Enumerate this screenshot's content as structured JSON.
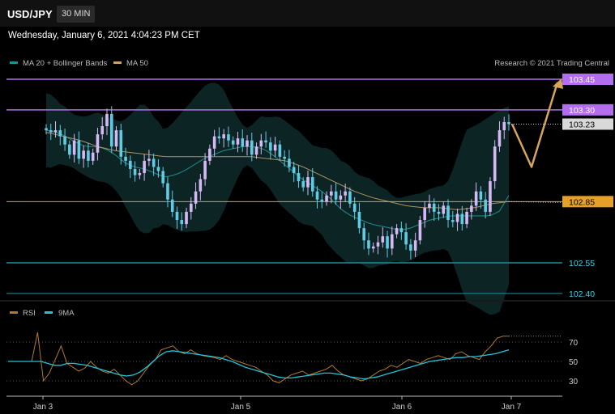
{
  "header": {
    "symbol": "USD/JPY",
    "interval": "30 MIN",
    "datetime": "Wednesday, January 6, 2021 4:04:23 PM CET"
  },
  "legend": [
    {
      "label": "MA 20 + Bollinger Bands",
      "color": "#1f8f8f"
    },
    {
      "label": "MA 50",
      "color": "#c9a46a"
    }
  ],
  "credit": "Research © 2021 Trading Central",
  "colors": {
    "candle_up": "#d6b8f5",
    "candle_down": "#5fcce4",
    "resistance": "#b36ef0",
    "pivot": "#e6a028",
    "support": "#1f8f9e",
    "arrow": "#d6a55a",
    "current_price_bg": "#d9d9d9"
  },
  "chart_data": [
    {
      "type": "candlestick",
      "title": "USD/JPY 30 MIN",
      "x_tick_labels": [
        "Jan 3",
        "Jan 5",
        "Jan 6",
        "Jan 7"
      ],
      "y_price_labels": [
        "103.45",
        "103.30",
        "103.23",
        "102.85",
        "102.55",
        "102.40"
      ],
      "levels": [
        {
          "price": 103.45,
          "label": "103.45",
          "kind": "resistance"
        },
        {
          "price": 103.3,
          "label": "103.30",
          "kind": "resistance"
        },
        {
          "price": 102.85,
          "label": "102.85",
          "kind": "pivot"
        },
        {
          "price": 102.55,
          "label": "102.55",
          "kind": "support"
        },
        {
          "price": 102.4,
          "label": "102.40",
          "kind": "support"
        }
      ],
      "current_price": 103.23,
      "close_series": [
        103.2,
        103.19,
        103.2,
        103.17,
        103.13,
        103.08,
        103.15,
        103.06,
        103.1,
        103.05,
        103.09,
        103.18,
        103.22,
        103.28,
        103.12,
        103.2,
        103.07,
        103.05,
        103.01,
        102.98,
        102.99,
        103.05,
        103.06,
        103.02,
        103.0,
        102.94,
        102.86,
        102.8,
        102.76,
        102.74,
        102.8,
        102.84,
        102.9,
        102.96,
        103.05,
        103.11,
        103.17,
        103.16,
        103.18,
        103.15,
        103.13,
        103.16,
        103.12,
        103.15,
        103.08,
        103.12,
        103.15,
        103.14,
        103.1,
        103.13,
        103.07,
        103.06,
        103.02,
        102.99,
        102.95,
        102.92,
        102.97,
        102.9,
        102.86,
        102.85,
        102.88,
        102.9,
        102.86,
        102.88,
        102.9,
        102.84,
        102.8,
        102.72,
        102.66,
        102.62,
        102.63,
        102.65,
        102.68,
        102.62,
        102.69,
        102.72,
        102.7,
        102.64,
        102.61,
        102.66,
        102.76,
        102.82,
        102.84,
        102.8,
        102.79,
        102.83,
        102.76,
        102.75,
        102.79,
        102.74,
        102.8,
        102.83,
        102.9,
        102.86,
        102.8,
        102.95,
        103.12,
        103.2,
        103.24,
        103.23
      ],
      "ma20_series": [
        103.2,
        103.19,
        103.17,
        103.14,
        103.12,
        103.12,
        103.11,
        103.08,
        103.04,
        103.02,
        103.01,
        102.99,
        102.97,
        102.98,
        103.0,
        103.03,
        103.06,
        103.08,
        103.1,
        103.11,
        103.12,
        103.12,
        103.11,
        103.08,
        103.04,
        103.0,
        102.96,
        102.93,
        102.9,
        102.86,
        102.81,
        102.78,
        102.76,
        102.74,
        102.73,
        102.72,
        102.71,
        102.72,
        102.74,
        102.76,
        102.77,
        102.78,
        102.78,
        102.78,
        102.78,
        102.78,
        102.8,
        102.88
      ],
      "ma50_series": [
        103.19,
        103.17,
        103.15,
        103.12,
        103.1,
        103.09,
        103.08,
        103.07,
        103.07,
        103.07,
        103.07,
        103.07,
        103.07,
        103.06,
        103.05,
        103.02,
        102.98,
        102.94,
        102.9,
        102.87,
        102.85,
        102.83,
        102.82,
        102.82,
        102.81,
        102.82,
        102.84,
        102.85
      ],
      "projection": [
        103.23,
        103.02,
        103.45
      ]
    },
    {
      "type": "line",
      "series": [
        {
          "name": "RSI",
          "color": "#b07a2a"
        },
        {
          "name": "9MA",
          "color": "#21c4d9"
        }
      ],
      "y_tick_labels": [
        "70",
        "50",
        "30"
      ],
      "ylim": [
        0,
        100
      ],
      "rsi_values": [
        50,
        50,
        50,
        50,
        50,
        80,
        30,
        38,
        52,
        66,
        48,
        44,
        40,
        43,
        50,
        44,
        40,
        38,
        42,
        36,
        30,
        26,
        30,
        38,
        46,
        52,
        62,
        64,
        66,
        60,
        58,
        62,
        58,
        56,
        55,
        54,
        52,
        56,
        52,
        50,
        48,
        46,
        44,
        40,
        36,
        30,
        28,
        32,
        36,
        38,
        40,
        36,
        38,
        40,
        42,
        46,
        40,
        36,
        34,
        32,
        30,
        32,
        36,
        40,
        42,
        46,
        44,
        48,
        52,
        50,
        48,
        52,
        54,
        56,
        54,
        52,
        58,
        60,
        56,
        54,
        52,
        60,
        66,
        74,
        76,
        76
      ],
      "ma9_values": [
        50,
        50,
        50,
        50,
        50,
        50,
        48,
        46,
        46,
        48,
        48,
        47,
        46,
        44,
        42,
        40,
        38,
        36,
        35,
        36,
        39,
        44,
        50,
        56,
        60,
        61,
        60,
        59,
        58,
        57,
        56,
        55,
        54,
        52,
        50,
        47,
        44,
        42,
        40,
        38,
        36,
        34,
        33,
        33,
        34,
        35,
        36,
        37,
        38,
        38,
        37,
        36,
        34,
        33,
        32,
        33,
        34,
        36,
        38,
        40,
        42,
        44,
        46,
        48,
        50,
        51,
        52,
        53,
        54,
        54,
        55,
        55,
        56,
        57,
        58,
        60,
        62
      ]
    }
  ]
}
